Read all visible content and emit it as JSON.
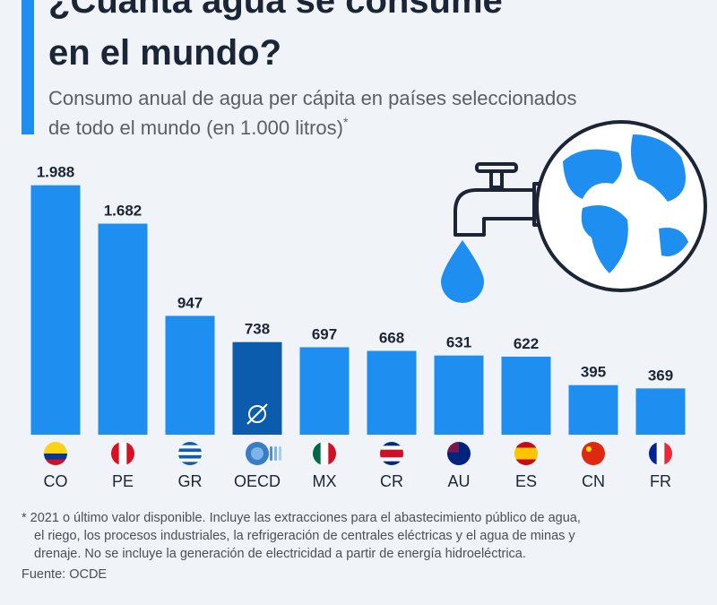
{
  "chart_data": {
    "type": "bar",
    "title": [
      "¿Cuánta agua se consume",
      "en el mundo?"
    ],
    "subtitle": [
      "Consumo anual de agua per cápita en países seleccionados",
      "de todo el mundo (en 1.000 litros)"
    ],
    "subtitle_note": "*",
    "categories": [
      "CO",
      "PE",
      "GR",
      "OECD",
      "MX",
      "CR",
      "AU",
      "ES",
      "CN",
      "FR"
    ],
    "values": [
      1988,
      1682,
      947,
      738,
      697,
      668,
      631,
      622,
      395,
      369
    ],
    "value_labels": [
      "1.988",
      "1.682",
      "947",
      "738",
      "697",
      "668",
      "631",
      "622",
      "395",
      "369"
    ],
    "colors": [
      "#1f8ef1",
      "#1f8ef1",
      "#1f8ef1",
      "#0b5cad",
      "#1f8ef1",
      "#1f8ef1",
      "#1f8ef1",
      "#1f8ef1",
      "#1f8ef1",
      "#1f8ef1"
    ],
    "footnote": [
      "* 2021 o último valor disponible. Incluye las extracciones para el abastecimiento público de agua,",
      "el riego, los procesos industriales, la refrigeración de centrales eléctricas y el agua de minas y",
      "drenaje. No se incluye la generación de electricidad a partir de energía hidroeléctrica."
    ],
    "source": "Fuente: OCDE"
  }
}
